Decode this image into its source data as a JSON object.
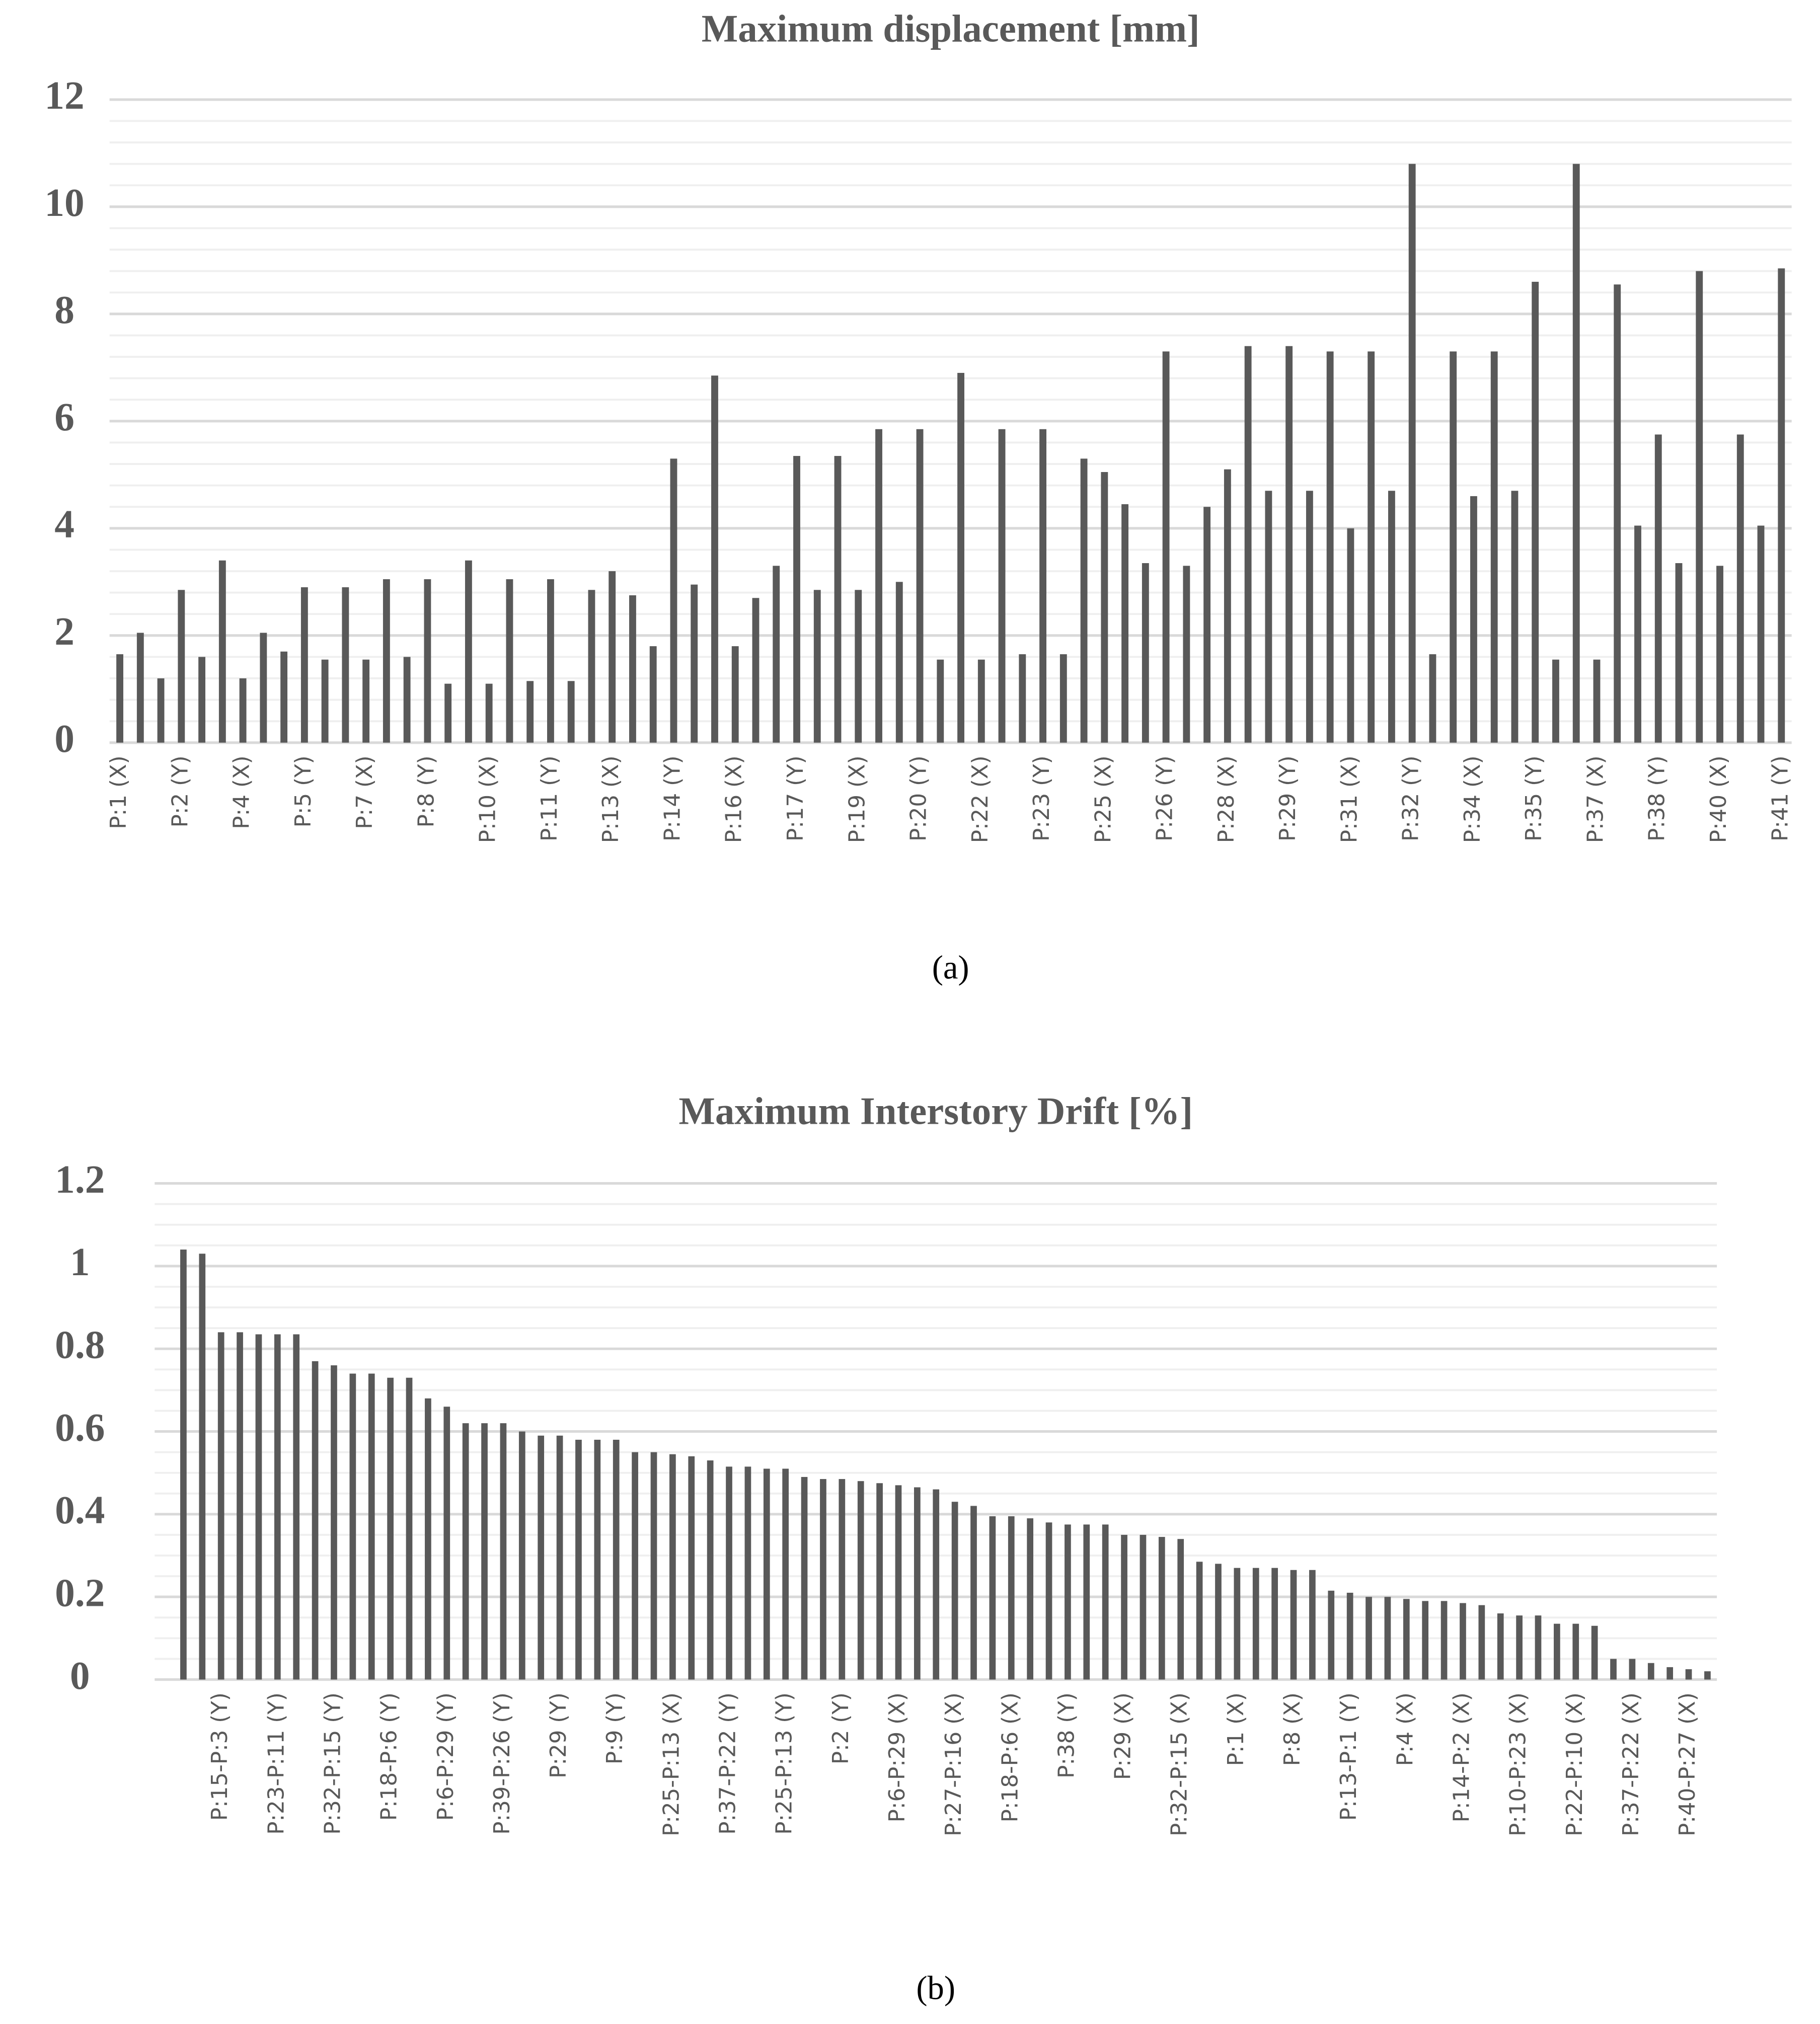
{
  "chart_data": [
    {
      "type": "bar",
      "title": "Maximum displacement [mm]",
      "caption": "(a)",
      "categories": [
        "P:1 (X)",
        null,
        null,
        "P:2 (Y)",
        null,
        null,
        "P:4 (X)",
        null,
        null,
        "P:5 (Y)",
        null,
        null,
        "P:7 (X)",
        null,
        null,
        "P:8 (Y)",
        null,
        null,
        "P:10 (X)",
        null,
        null,
        "P:11 (Y)",
        null,
        null,
        "P:13 (X)",
        null,
        null,
        "P:14 (Y)",
        null,
        null,
        "P:16 (X)",
        null,
        null,
        "P:17 (Y)",
        null,
        null,
        "P:19 (X)",
        null,
        null,
        "P:20 (Y)",
        null,
        null,
        "P:22 (X)",
        null,
        null,
        "P:23 (Y)",
        null,
        null,
        "P:25 (X)",
        null,
        null,
        "P:26 (Y)",
        null,
        null,
        "P:28 (X)",
        null,
        null,
        "P:29 (Y)",
        null,
        null,
        "P:31 (X)",
        null,
        null,
        "P:32 (Y)",
        null,
        null,
        "P:34 (X)",
        null,
        null,
        "P:35 (Y)",
        null,
        null,
        "P:37 (X)",
        null,
        null,
        "P:38 (Y)",
        null,
        null,
        "P:40 (X)",
        null,
        null,
        "P:41 (Y)"
      ],
      "values": [
        1.65,
        2.05,
        1.2,
        2.85,
        1.6,
        3.4,
        1.2,
        2.05,
        1.7,
        2.9,
        1.55,
        2.9,
        1.55,
        3.05,
        1.6,
        3.05,
        1.1,
        3.4,
        1.1,
        3.05,
        1.15,
        3.05,
        1.15,
        2.85,
        3.2,
        2.75,
        1.8,
        5.3,
        2.95,
        6.85,
        1.8,
        2.7,
        3.3,
        5.35,
        2.85,
        5.35,
        2.85,
        5.85,
        3.0,
        5.85,
        1.55,
        6.9,
        1.55,
        5.85,
        1.65,
        5.85,
        1.65,
        5.3,
        5.05,
        4.45,
        3.35,
        7.3,
        3.3,
        4.4,
        5.1,
        7.4,
        4.7,
        7.4,
        4.7,
        7.3,
        4.0,
        7.3,
        4.7,
        10.8,
        1.65,
        7.3,
        4.6,
        7.3,
        4.7,
        8.6,
        1.55,
        10.8,
        1.55,
        8.55,
        4.05,
        5.75,
        3.35,
        8.8,
        3.3,
        5.75,
        4.05,
        8.85
      ],
      "color": "#595959",
      "ylim": [
        0,
        12
      ],
      "yticks": [
        0,
        2,
        4,
        6,
        8,
        10,
        12
      ],
      "grid": true,
      "minor_grid_divisions": 5
    },
    {
      "type": "bar",
      "title": "Maximum Interstory Drift [%]",
      "caption": "(b)",
      "categories": [
        null,
        null,
        "P:15-P:3 (Y)",
        null,
        null,
        "P:23-P:11 (Y)",
        null,
        null,
        "P:32-P:15 (Y)",
        null,
        null,
        "P:18-P:6 (Y)",
        null,
        null,
        "P:6-P:29 (Y)",
        null,
        null,
        "P:39-P:26 (Y)",
        null,
        null,
        "P:29 (Y)",
        null,
        null,
        "P:9 (Y)",
        null,
        null,
        "P:25-P:13 (X)",
        null,
        null,
        "P:37-P:22 (Y)",
        null,
        null,
        "P:25-P:13 (Y)",
        null,
        null,
        "P:2 (Y)",
        null,
        null,
        "P:6-P:29 (X)",
        null,
        null,
        "P:27-P:16 (X)",
        null,
        null,
        "P:18-P:6 (X)",
        null,
        null,
        "P:38 (Y)",
        null,
        null,
        "P:29 (X)",
        null,
        null,
        "P:32-P:15 (X)",
        null,
        null,
        "P:1 (X)",
        null,
        null,
        "P:8 (X)",
        null,
        null,
        "P:13-P:1 (Y)",
        null,
        null,
        "P:4 (X)",
        null,
        null,
        "P:14-P:2 (X)",
        null,
        null,
        "P:10-P:23 (X)",
        null,
        null,
        "P:22-P:10 (X)",
        null,
        null,
        "P:37-P:22 (X)",
        null,
        null,
        "P:40-P:27 (X)",
        null
      ],
      "values": [
        1.04,
        1.03,
        0.84,
        0.84,
        0.835,
        0.835,
        0.835,
        0.77,
        0.76,
        0.74,
        0.74,
        0.73,
        0.73,
        0.68,
        0.66,
        0.62,
        0.62,
        0.62,
        0.6,
        0.59,
        0.59,
        0.58,
        0.58,
        0.58,
        0.55,
        0.55,
        0.545,
        0.54,
        0.53,
        0.515,
        0.515,
        0.51,
        0.51,
        0.49,
        0.485,
        0.485,
        0.48,
        0.475,
        0.47,
        0.465,
        0.46,
        0.43,
        0.42,
        0.395,
        0.395,
        0.39,
        0.38,
        0.375,
        0.375,
        0.375,
        0.35,
        0.35,
        0.345,
        0.34,
        0.285,
        0.28,
        0.27,
        0.27,
        0.27,
        0.265,
        0.265,
        0.215,
        0.21,
        0.2,
        0.2,
        0.195,
        0.19,
        0.19,
        0.185,
        0.18,
        0.16,
        0.155,
        0.155,
        0.135,
        0.135,
        0.13,
        0.05,
        0.05,
        0.04,
        0.03,
        0.025,
        0.02
      ],
      "color": "#595959",
      "ylim": [
        0,
        1.2
      ],
      "yticks": [
        0,
        0.2,
        0.4,
        0.6,
        0.8,
        1,
        1.2
      ],
      "grid": true,
      "minor_grid_divisions": 4
    }
  ]
}
